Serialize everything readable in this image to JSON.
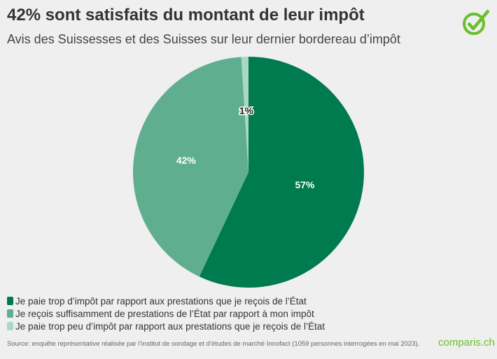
{
  "header": {
    "title": "42% sont satisfaits du montant de leur impôt",
    "subtitle": "Avis des Suissesses et des Suisses sur leur dernier bordereau d’impôt"
  },
  "chart_data": {
    "type": "pie",
    "start": "top, clockwise",
    "legend_position": "bottom-left",
    "slices": [
      {
        "label": "Je paie trop d’impôt par rapport aux prestations que je reçois de l’État",
        "value": 57,
        "data_label": "57%",
        "color": "#007a4f"
      },
      {
        "label": "Je reçois suffisamment de prestations de l’État par rapport à mon impôt",
        "value": 42,
        "data_label": "42%",
        "color": "#5fae8f"
      },
      {
        "label": "Je paie trop peu d’impôt par rapport aux prestations que je reçois de l’État",
        "value": 1,
        "data_label": "1%",
        "color": "#a9d8c3"
      }
    ]
  },
  "footer": {
    "source": "Source: enquête représentative réalisée par l’institut de sondage et d’études de marché Innofact (1059 personnes interrogées en mai 2023).",
    "brand": "comparis.ch"
  },
  "colors": {
    "brand_green": "#6abf2a"
  },
  "icons": {
    "logo": "check-circle-icon"
  }
}
